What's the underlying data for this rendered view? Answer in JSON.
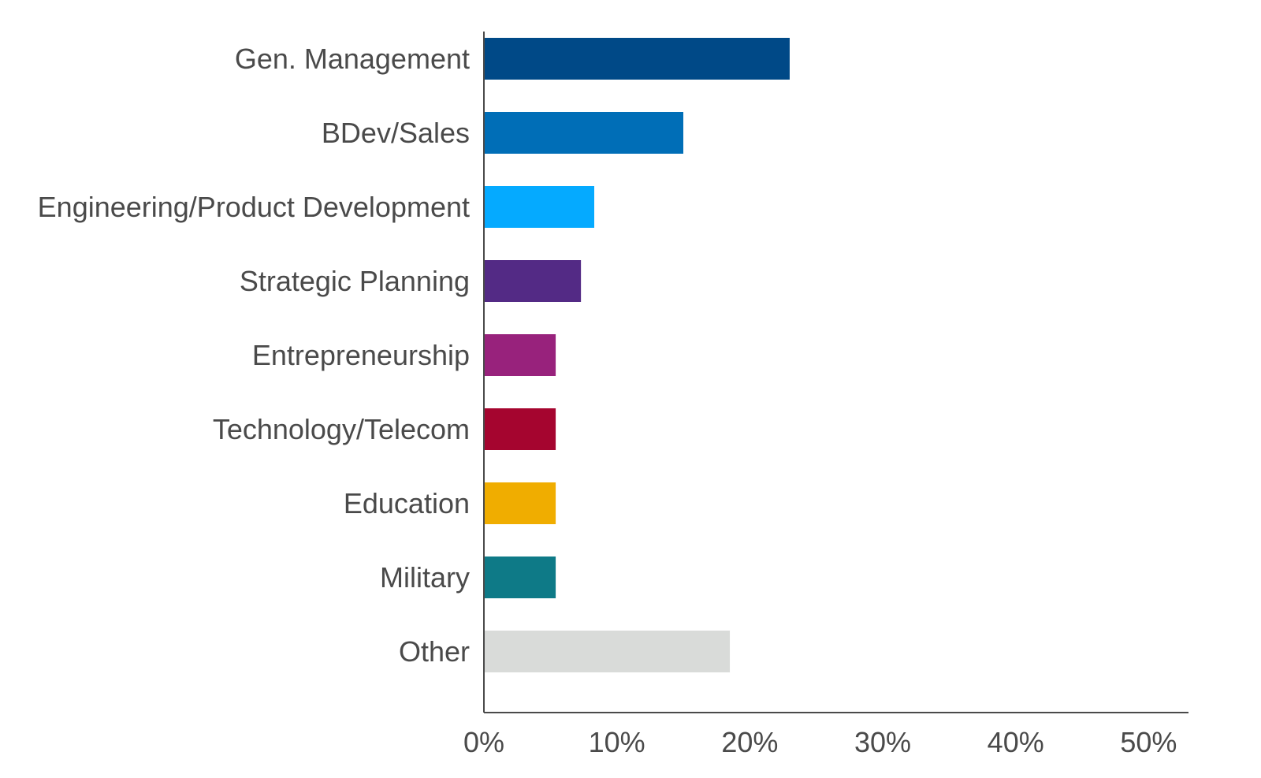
{
  "chart_data": {
    "type": "bar",
    "orientation": "horizontal",
    "title": "",
    "xlabel": "",
    "ylabel": "",
    "xlim": [
      0,
      53
    ],
    "grid": false,
    "legend": "none",
    "categories": [
      "Gen. Management",
      "BDev/Sales",
      "Engineering/Product Development",
      "Strategic Planning",
      "Entrepreneurship",
      "Technology/Telecom",
      "Education",
      "Military",
      "Other"
    ],
    "values": [
      23,
      15,
      8.3,
      7.3,
      5.4,
      5.4,
      5.4,
      5.4,
      18.5
    ],
    "colors": [
      "#004987",
      "#006eb7",
      "#05aaff",
      "#532a85",
      "#98227c",
      "#a5052f",
      "#f0ad00",
      "#0e7a87",
      "#d9dbd9"
    ],
    "ticks": [
      {
        "value": 0,
        "label": "0%"
      },
      {
        "value": 10,
        "label": "10%"
      },
      {
        "value": 20,
        "label": "20%"
      },
      {
        "value": 30,
        "label": "30%"
      },
      {
        "value": 40,
        "label": "40%"
      },
      {
        "value": 50,
        "label": "50%"
      }
    ]
  }
}
